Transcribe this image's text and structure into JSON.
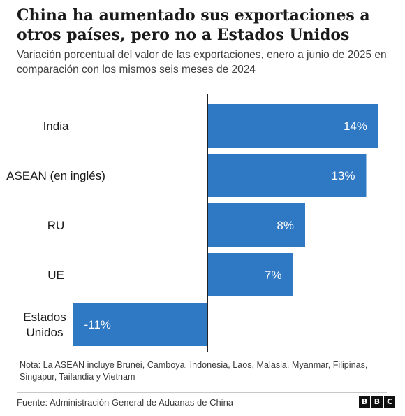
{
  "title": "China ha aumentado sus exportaciones a otros países, pero no a Estados Unidos",
  "subtitle": "Variación porcentual del valor de las exportaciones, enero a junio de 2025 en comparación con los mismos seis meses de 2024",
  "note": "Nota: La ASEAN incluye Brunei, Camboya, Indonesia, Laos, Malasia, Myanmar, Filipinas, Singapur, Tailandia y Vietnam",
  "source": "Fuente: Administración General de Aduanas de China",
  "logo": [
    "B",
    "B",
    "C"
  ],
  "colors": {
    "bar": "#2f78c4",
    "axis": "#222222",
    "label": "#ffffff"
  },
  "chart_data": {
    "type": "bar",
    "orientation": "horizontal",
    "title": "China ha aumentado sus exportaciones a otros países, pero no a Estados Unidos",
    "subtitle": "Variación porcentual del valor de las exportaciones, enero a junio de 2025 en comparación con los mismos seis meses de 2024",
    "categories": [
      "India",
      "ASEAN (en inglés)",
      "RU",
      "UE",
      "Estados Unidos"
    ],
    "category_lines": [
      [
        "India"
      ],
      [
        "ASEAN (en inglés)"
      ],
      [
        "RU"
      ],
      [
        "UE"
      ],
      [
        "Estados",
        "Unidos"
      ]
    ],
    "values": [
      14,
      13,
      8,
      7,
      -11
    ],
    "data_labels": [
      "14%",
      "13%",
      "8%",
      "7%",
      "-11%"
    ],
    "unit": "%",
    "xlim": [
      -11,
      14
    ],
    "grid": false,
    "legend": "none"
  }
}
